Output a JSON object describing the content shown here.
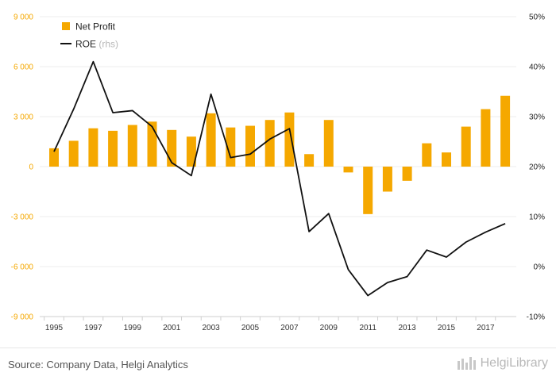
{
  "chart_data": {
    "type": "bar+line",
    "x": [
      1995,
      1996,
      1997,
      1998,
      1999,
      2000,
      2001,
      2002,
      2003,
      2004,
      2005,
      2006,
      2007,
      2008,
      2009,
      2010,
      2011,
      2012,
      2013,
      2014,
      2015,
      2016,
      2017,
      2018
    ],
    "x_tick_labels": [
      "1995",
      "1997",
      "1999",
      "2001",
      "2003",
      "2005",
      "2007",
      "2009",
      "2011",
      "2013",
      "2015",
      "2017"
    ],
    "series": [
      {
        "name": "Net Profit",
        "type": "bar",
        "axis": "left",
        "color": "#f5a800",
        "values": [
          1100,
          1550,
          2300,
          2150,
          2500,
          2700,
          2200,
          1800,
          3200,
          2350,
          2450,
          2800,
          3250,
          750,
          2800,
          -350,
          -2850,
          -1500,
          -850,
          1400,
          850,
          2400,
          3450,
          4250
        ]
      },
      {
        "name": "ROE",
        "name_suffix": "(rhs)",
        "type": "line",
        "axis": "right",
        "color": "#111111",
        "values": [
          23.0,
          31.5,
          41.0,
          30.8,
          31.2,
          28.0,
          20.8,
          18.2,
          34.5,
          21.8,
          22.5,
          25.5,
          27.6,
          7.0,
          10.6,
          -0.6,
          -5.8,
          -3.2,
          -2.0,
          3.3,
          1.9,
          4.9,
          6.9,
          8.6
        ]
      }
    ],
    "left_axis": {
      "min": -9000,
      "max": 9000,
      "step": 3000,
      "tick_labels": [
        "-9 000",
        "-6 000",
        "-3 000",
        "0",
        "3 000",
        "6 000",
        "9 000"
      ]
    },
    "right_axis": {
      "min": -10,
      "max": 50,
      "step": 10,
      "tick_labels": [
        "-10%",
        "0%",
        "10%",
        "20%",
        "30%",
        "40%",
        "50%"
      ]
    },
    "grid": true,
    "legend_position": "top-left"
  },
  "footer": {
    "source": "Source: Company Data, Helgi Analytics",
    "brand": "HelgiLibrary"
  }
}
